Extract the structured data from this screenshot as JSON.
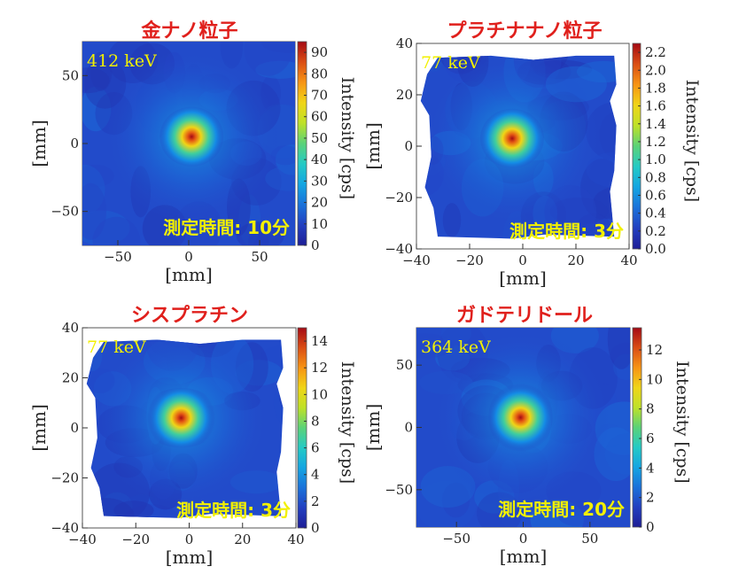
{
  "colors": {
    "title": "#e0201c",
    "annotation": "#f2f000",
    "background": "#1f3fb4"
  },
  "chart_data": [
    {
      "type": "heatmap",
      "title": "金ナノ粒子",
      "energy_label": "412 keV",
      "time_label": "測定時間: 10分",
      "xlabel": "[mm]",
      "ylabel": "[mm]",
      "colorbar_label": "Intensity [cps]",
      "xlim": [
        -75,
        75
      ],
      "ylim": [
        -75,
        75
      ],
      "xticks": [
        -50,
        0,
        50
      ],
      "yticks": [
        -50,
        0,
        50
      ],
      "zlim": [
        0,
        95
      ],
      "zticks": [
        0,
        10,
        20,
        30,
        40,
        50,
        60,
        70,
        80,
        90
      ],
      "hotspot": {
        "x": 2,
        "y": 5,
        "peak": 95
      },
      "shape": "square"
    },
    {
      "type": "heatmap",
      "title": "プラチナナノ粒子",
      "energy_label": "77 keV",
      "time_label": "測定時間: 3分",
      "xlabel": "[mm]",
      "ylabel": "[mm]",
      "colorbar_label": "Intensity [cps]",
      "xlim": [
        -40,
        40
      ],
      "ylim": [
        -40,
        40
      ],
      "xticks": [
        -40,
        -20,
        0,
        20,
        40
      ],
      "yticks": [
        -40,
        -20,
        0,
        20,
        40
      ],
      "zlim": [
        0,
        2.3
      ],
      "zticks": [
        "0.0",
        "0.2",
        "0.4",
        "0.6",
        "0.8",
        "1.0",
        "1.2",
        "1.4",
        "1.6",
        "1.8",
        "2.0",
        "2.2"
      ],
      "hotspot": {
        "x": -4,
        "y": 3,
        "peak": 2.3
      },
      "shape": "masked"
    },
    {
      "type": "heatmap",
      "title": "シスプラチン",
      "energy_label": "77 keV",
      "time_label": "測定時間: 3分",
      "xlabel": "[mm]",
      "ylabel": "[mm]",
      "colorbar_label": "Intensity [cps]",
      "xlim": [
        -40,
        40
      ],
      "ylim": [
        -40,
        40
      ],
      "xticks": [
        -40,
        -20,
        0,
        20,
        40
      ],
      "yticks": [
        -40,
        -20,
        0,
        20,
        40
      ],
      "zlim": [
        0,
        15
      ],
      "zticks": [
        0,
        2,
        4,
        6,
        8,
        10,
        12,
        14
      ],
      "hotspot": {
        "x": -3,
        "y": 4,
        "peak": 15
      },
      "shape": "masked"
    },
    {
      "type": "heatmap",
      "title": "ガドテリドール",
      "energy_label": "364 keV",
      "time_label": "測定時間: 20分",
      "xlabel": "[mm]",
      "ylabel": "[mm]",
      "colorbar_label": "Intensity [cps]",
      "xlim": [
        -80,
        80
      ],
      "ylim": [
        -80,
        80
      ],
      "xticks": [
        -50,
        0,
        50
      ],
      "yticks": [
        -50,
        0,
        50
      ],
      "zlim": [
        0,
        13.5
      ],
      "zticks": [
        0,
        2,
        4,
        6,
        8,
        10,
        12
      ],
      "hotspot": {
        "x": -2,
        "y": 8,
        "peak": 13.5
      },
      "shape": "square"
    }
  ]
}
